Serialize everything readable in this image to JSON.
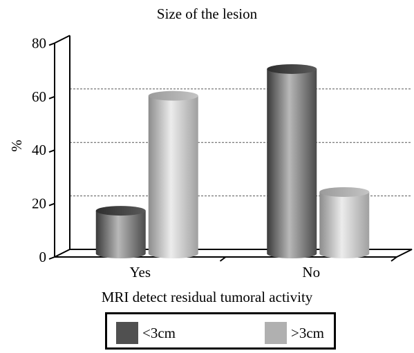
{
  "chart_data": {
    "type": "bar",
    "title": "Size of the lesion",
    "xlabel": "MRI detect residual tumoral activity",
    "ylabel": "%",
    "categories": [
      "Yes",
      "No"
    ],
    "ylim": [
      0,
      80
    ],
    "yticks": [
      "0",
      "20",
      "40",
      "60",
      "80"
    ],
    "grid": true,
    "legend_position": "bottom",
    "series": [
      {
        "name": "<3cm",
        "values": [
          16,
          69
        ],
        "color": "#505050"
      },
      {
        "name": ">3cm",
        "values": [
          59,
          23
        ],
        "color": "#b0b0b0"
      }
    ]
  }
}
